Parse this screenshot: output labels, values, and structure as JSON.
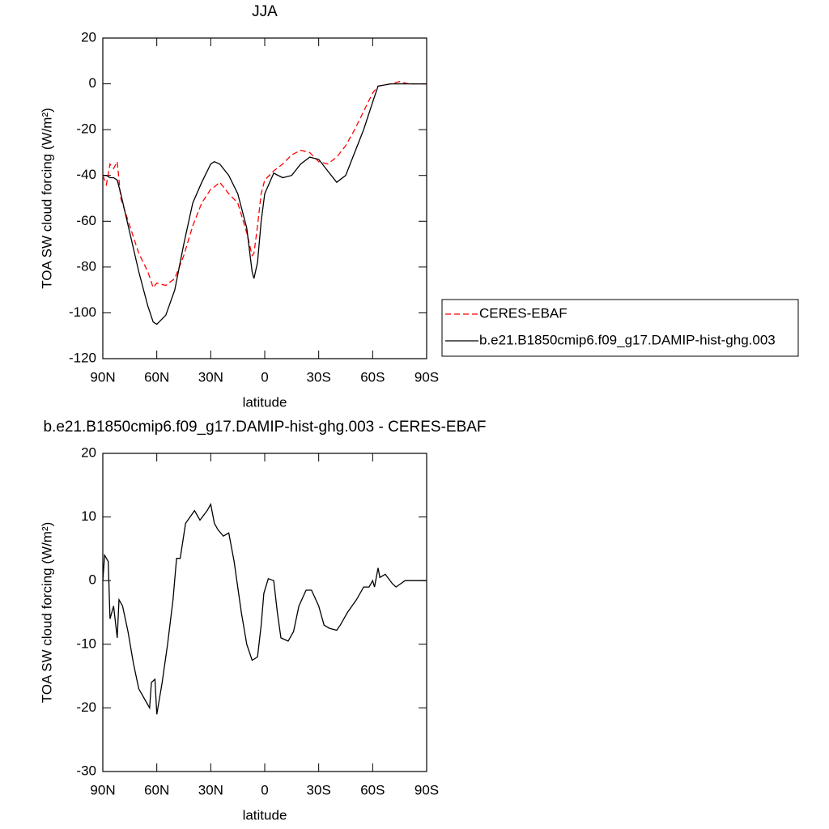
{
  "chart_data": [
    {
      "type": "line",
      "title": "JJA",
      "xlabel": "latitude",
      "ylabel": "TOA SW cloud forcing (W/m²)",
      "x": [
        90,
        88,
        86,
        84,
        82,
        80,
        75,
        70,
        65,
        62,
        60,
        55,
        50,
        45,
        40,
        35,
        30,
        28,
        25,
        20,
        15,
        10,
        7,
        6,
        4,
        2,
        0,
        -5,
        -10,
        -15,
        -20,
        -25,
        -30,
        -35,
        -40,
        -45,
        -50,
        -55,
        -60,
        -63,
        -70,
        -75,
        -80,
        -85,
        -90
      ],
      "series": [
        {
          "name": "CERES-EBAF",
          "color": "#ff0000",
          "dashed": true,
          "values": [
            -40,
            -44,
            -35,
            -37,
            -34,
            -50,
            -62,
            -74,
            -82,
            -89,
            -87,
            -88,
            -85,
            -75,
            -62,
            -52,
            -46,
            -45,
            -43,
            -48,
            -52,
            -65,
            -75,
            -74,
            -62,
            -48,
            -42,
            -38,
            -35,
            -31,
            -29,
            -30,
            -34,
            -35,
            -32,
            -27,
            -20,
            -12,
            -4,
            -1,
            0,
            1,
            0,
            0,
            0
          ]
        },
        {
          "name": "b.e21.B1850cmip6.f09_g17.DAMIP-hist-ghg.003",
          "color": "#000000",
          "dashed": false,
          "values": [
            -40,
            -40,
            -41,
            -41,
            -42,
            -48,
            -65,
            -82,
            -97,
            -104,
            -105,
            -101,
            -90,
            -70,
            -52,
            -43,
            -35,
            -34,
            -35,
            -40,
            -48,
            -63,
            -82,
            -85,
            -78,
            -60,
            -48,
            -39,
            -41,
            -40,
            -35,
            -32,
            -33,
            -38,
            -43,
            -40,
            -30,
            -20,
            -8,
            -1,
            0,
            0,
            0,
            0,
            0
          ]
        }
      ],
      "xlim": [
        90,
        -90
      ],
      "xticks": [
        {
          "value": 90,
          "label": "90N"
        },
        {
          "value": 60,
          "label": "60N"
        },
        {
          "value": 30,
          "label": "30N"
        },
        0,
        {
          "value": -30,
          "label": "30S"
        },
        {
          "value": -60,
          "label": "60S"
        },
        {
          "value": -90,
          "label": "90S"
        }
      ],
      "ylim": [
        -120,
        20
      ],
      "yticks": [
        -120,
        -100,
        -80,
        -60,
        -40,
        -20,
        0,
        20
      ],
      "legend": "outside-right"
    },
    {
      "type": "line",
      "title": "b.e21.B1850cmip6.f09_g17.DAMIP-hist-ghg.003 - CERES-EBAF",
      "xlabel": "latitude",
      "ylabel": "TOA SW cloud forcing (W/m²)",
      "x": [
        90,
        89,
        87,
        86,
        84,
        82,
        81,
        79,
        76,
        73,
        70,
        66,
        64,
        63,
        61,
        60,
        57,
        54,
        51,
        49,
        47,
        44,
        39,
        36,
        32,
        30,
        28,
        26,
        23,
        20,
        17,
        13,
        10,
        7,
        4,
        2,
        0.5,
        -2,
        -5,
        -7,
        -9,
        -13,
        -16,
        -19,
        -23,
        -26,
        -30,
        -33,
        -36,
        -40,
        -42,
        -46,
        -51,
        -55,
        -58,
        -60,
        -61,
        -63,
        -64,
        -67,
        -71,
        -73,
        -78,
        -90
      ],
      "series": [
        {
          "color": "#000000",
          "dashed": false,
          "values": [
            0,
            4,
            3,
            -6,
            -4,
            -9,
            -3,
            -4,
            -8,
            -13,
            -17,
            -19,
            -20,
            -16,
            -15.5,
            -21,
            -16,
            -10,
            -3,
            3.5,
            3.5,
            9,
            11,
            9.5,
            11,
            12,
            9,
            8,
            7,
            7.5,
            3,
            -5,
            -10,
            -12.5,
            -12,
            -7,
            -2,
            0.3,
            0,
            -5,
            -9,
            -9.5,
            -8,
            -4,
            -1.5,
            -1.5,
            -4,
            -7,
            -7.5,
            -7.8,
            -7,
            -5,
            -3,
            -1,
            -1,
            0,
            -1,
            2,
            0.5,
            1,
            -0.5,
            -1,
            0,
            0
          ]
        }
      ],
      "xlim": [
        90,
        -90
      ],
      "xticks": [
        {
          "value": 90,
          "label": "90N"
        },
        {
          "value": 60,
          "label": "60N"
        },
        {
          "value": 30,
          "label": "30N"
        },
        0,
        {
          "value": -30,
          "label": "30S"
        },
        {
          "value": -60,
          "label": "60S"
        },
        {
          "value": -90,
          "label": "90S"
        }
      ],
      "ylim": [
        -30,
        20
      ],
      "yticks": [
        -30,
        -20,
        -10,
        0,
        10,
        20
      ]
    }
  ]
}
